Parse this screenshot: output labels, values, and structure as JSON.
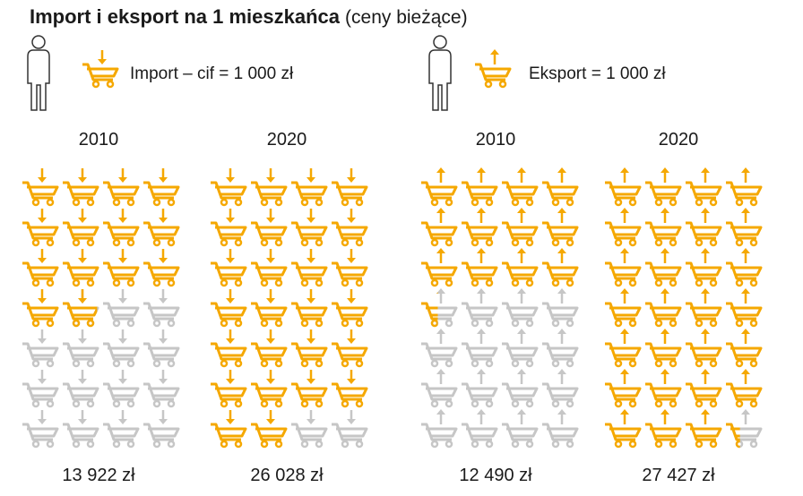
{
  "chart_data": {
    "type": "pictogram",
    "title": "Import i eksport na 1 mieszkańca",
    "subtitle": "(ceny bieżące)",
    "unit": 1000,
    "color": "#f5a800",
    "empty_color": "#c6c6c6",
    "series": [
      {
        "name": "Import – cif = 1 000 zł",
        "categories": [
          "2010",
          "2020"
        ],
        "values": [
          13922,
          26028
        ],
        "value_labels": [
          "13 922 zł",
          "26 028 zł"
        ]
      },
      {
        "name": "Eksport = 1 000 zł",
        "categories": [
          "2010",
          "2020"
        ],
        "values": [
          12490,
          27427
        ],
        "value_labels": [
          "12 490 zł",
          "27 427 zł"
        ]
      }
    ]
  }
}
